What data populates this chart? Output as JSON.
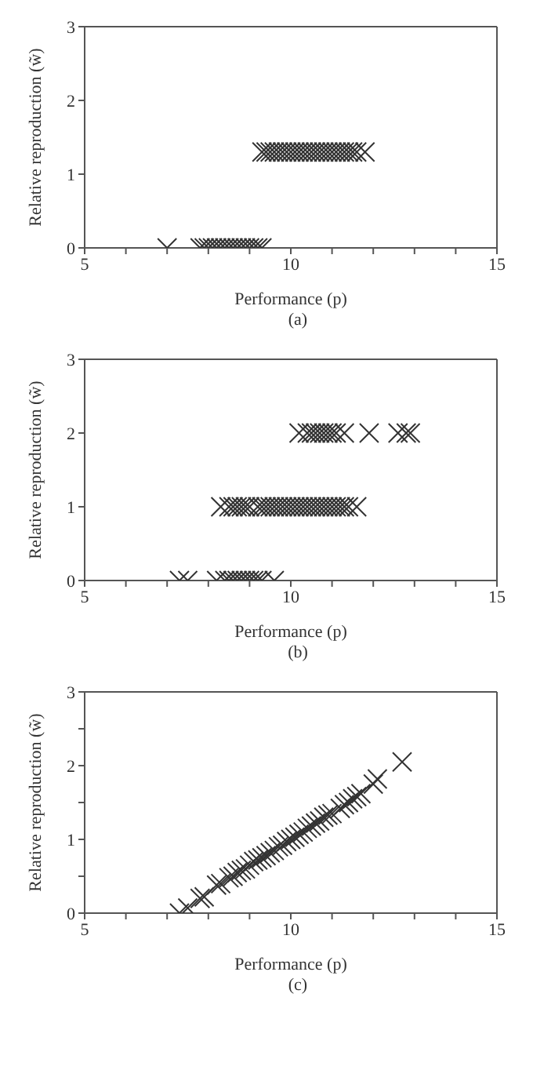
{
  "chart_data": [
    {
      "type": "scatter",
      "xlabel": "Performance (p)",
      "ylabel": "Relative reproduction (w̃)",
      "annotations": [
        "(a)"
      ],
      "marker": "cross",
      "grid": false,
      "xlim": [
        5,
        15
      ],
      "xticks": [
        5,
        {
          "value": 6,
          "label": null
        },
        {
          "value": 7,
          "label": null
        },
        {
          "value": 8,
          "label": null
        },
        {
          "value": 9,
          "label": null
        },
        10,
        {
          "value": 11,
          "label": null
        },
        {
          "value": 12,
          "label": null
        },
        {
          "value": 13,
          "label": null
        },
        {
          "value": 14,
          "label": null
        },
        15
      ],
      "ylim": [
        0,
        3
      ],
      "yticks": [
        0,
        1,
        2,
        3
      ],
      "series": [
        {
          "color": "#333333",
          "x": [
            7.0,
            7.8,
            7.9,
            8.0,
            8.1,
            8.2,
            8.3,
            8.4,
            8.5,
            8.6,
            8.7,
            8.8,
            8.9,
            9.0,
            9.1,
            9.2,
            9.3,
            9.3,
            9.4,
            9.5,
            9.6,
            9.7,
            9.8,
            9.9,
            10.0,
            10.1,
            10.2,
            10.3,
            10.4,
            10.5,
            10.6,
            10.7,
            10.8,
            10.9,
            11.0,
            11.1,
            11.2,
            11.3,
            11.4,
            11.5,
            11.6,
            11.8
          ],
          "values": [
            0,
            0,
            0,
            0,
            0,
            0,
            0,
            0,
            0,
            0,
            0,
            0,
            0,
            0,
            0,
            0,
            0,
            1.3,
            1.3,
            1.3,
            1.3,
            1.3,
            1.3,
            1.3,
            1.3,
            1.3,
            1.3,
            1.3,
            1.3,
            1.3,
            1.3,
            1.3,
            1.3,
            1.3,
            1.3,
            1.3,
            1.3,
            1.3,
            1.3,
            1.3,
            1.3,
            1.3
          ]
        }
      ]
    },
    {
      "type": "scatter",
      "xlabel": "Performance (p)",
      "ylabel": "Relative reproduction (w̃)",
      "annotations": [
        "(b)"
      ],
      "marker": "cross",
      "grid": false,
      "xlim": [
        5,
        15
      ],
      "xticks": [
        5,
        {
          "value": 6,
          "label": null
        },
        {
          "value": 7,
          "label": null
        },
        {
          "value": 8,
          "label": null
        },
        {
          "value": 9,
          "label": null
        },
        10,
        {
          "value": 11,
          "label": null
        },
        {
          "value": 12,
          "label": null
        },
        {
          "value": 13,
          "label": null
        },
        {
          "value": 14,
          "label": null
        },
        15
      ],
      "ylim": [
        0,
        3
      ],
      "yticks": [
        0,
        1,
        2,
        3
      ],
      "series": [
        {
          "color": "#333333",
          "x": [
            7.3,
            7.5,
            8.2,
            8.4,
            8.5,
            8.6,
            8.7,
            8.8,
            8.9,
            9.0,
            9.1,
            9.2,
            9.3,
            9.6,
            8.3,
            8.5,
            8.6,
            8.7,
            8.8,
            8.9,
            9.0,
            9.2,
            9.3,
            9.4,
            9.5,
            9.6,
            9.7,
            9.8,
            9.9,
            10.0,
            10.1,
            10.2,
            10.3,
            10.4,
            10.5,
            10.6,
            10.7,
            10.8,
            10.9,
            11.0,
            11.1,
            11.2,
            11.3,
            11.4,
            11.6,
            10.2,
            10.4,
            10.5,
            10.6,
            10.7,
            10.8,
            10.9,
            11.0,
            11.1,
            11.3,
            11.9,
            12.6,
            12.8,
            12.9
          ],
          "values": [
            0,
            0,
            0,
            0,
            0,
            0,
            0,
            0,
            0,
            0,
            0,
            0,
            0,
            0,
            1,
            1,
            1,
            1,
            1,
            1,
            1,
            1,
            1,
            1,
            1,
            1,
            1,
            1,
            1,
            1,
            1,
            1,
            1,
            1,
            1,
            1,
            1,
            1,
            1,
            1,
            1,
            1,
            1,
            1,
            1,
            2,
            2,
            2,
            2,
            2,
            2,
            2,
            2,
            2,
            2,
            2,
            2,
            2,
            2
          ]
        }
      ]
    },
    {
      "type": "scatter",
      "xlabel": "Performance (p)",
      "ylabel": "Relative reproduction (w̃)",
      "annotations": [
        "(c)"
      ],
      "marker": "cross",
      "grid": false,
      "xlim": [
        5,
        15
      ],
      "xticks": [
        5,
        {
          "value": 6,
          "label": null
        },
        {
          "value": 7,
          "label": null
        },
        {
          "value": 8,
          "label": null
        },
        {
          "value": 9,
          "label": null
        },
        10,
        {
          "value": 11,
          "label": null
        },
        {
          "value": 12,
          "label": null
        },
        {
          "value": 13,
          "label": null
        },
        {
          "value": 14,
          "label": null
        },
        15
      ],
      "ylim": [
        0,
        3
      ],
      "yticks": [
        0,
        {
          "value": 0.5,
          "label": null
        },
        1,
        {
          "value": 1.5,
          "label": null
        },
        2,
        {
          "value": 2.5,
          "label": null
        },
        3
      ],
      "series": [
        {
          "color": "#333333",
          "x": [
            7.3,
            7.5,
            7.8,
            7.9,
            8.2,
            8.3,
            8.5,
            8.6,
            8.7,
            8.8,
            8.9,
            9.0,
            9.1,
            9.2,
            9.3,
            9.4,
            9.5,
            9.6,
            9.7,
            9.8,
            9.9,
            10.0,
            10.1,
            10.2,
            10.3,
            10.4,
            10.5,
            10.6,
            10.7,
            10.8,
            10.9,
            11.0,
            11.2,
            11.3,
            11.4,
            11.5,
            11.6,
            11.7,
            12.0,
            12.1,
            12.7
          ],
          "values": [
            0.0,
            0.07,
            0.2,
            0.22,
            0.38,
            0.4,
            0.48,
            0.5,
            0.55,
            0.58,
            0.6,
            0.65,
            0.7,
            0.72,
            0.75,
            0.78,
            0.82,
            0.85,
            0.9,
            0.92,
            0.97,
            1.0,
            1.03,
            1.07,
            1.1,
            1.15,
            1.18,
            1.22,
            1.25,
            1.3,
            1.33,
            1.35,
            1.42,
            1.47,
            1.5,
            1.55,
            1.58,
            1.62,
            1.75,
            1.82,
            2.05
          ]
        }
      ]
    }
  ]
}
